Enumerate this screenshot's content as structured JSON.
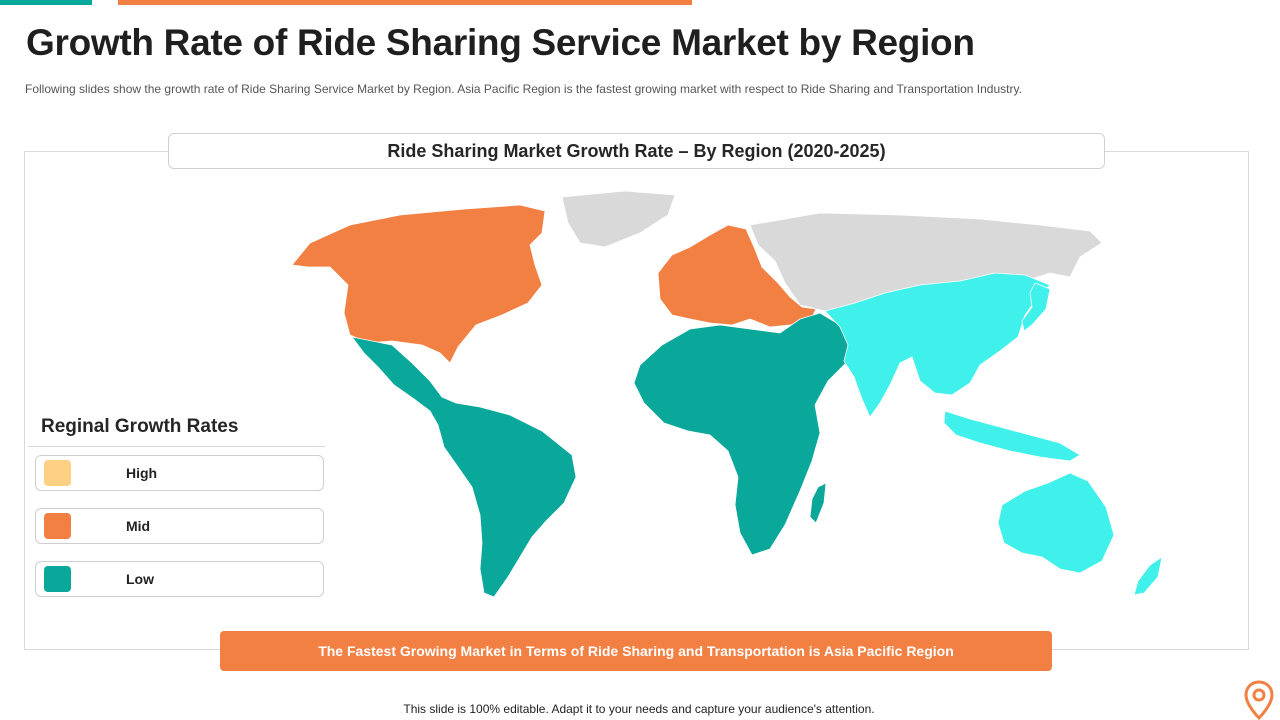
{
  "slide": {
    "title": "Growth Rate of Ride Sharing Service Market by Region",
    "description": "Following slides show the growth rate of Ride Sharing Service Market by Region. Asia Pacific Region is the fastest growing market with respect to Ride Sharing and Transportation Industry."
  },
  "map": {
    "header": "Ride Sharing Market Growth Rate – By Region (2020-2025)",
    "colors": {
      "high": "#fdd083",
      "mid": "#f28043",
      "low": "#0aa89b",
      "asia_pacific": "#3ff1ea",
      "no_data": "#d9d9d9"
    },
    "regions": [
      {
        "name": "North America",
        "category": "mid"
      },
      {
        "name": "Europe",
        "category": "mid"
      },
      {
        "name": "Latin America",
        "category": "low"
      },
      {
        "name": "Middle East & Africa",
        "category": "low"
      },
      {
        "name": "Asia Pacific",
        "category": "highlight"
      },
      {
        "name": "Russia / Northern Asia / Greenland",
        "category": "none"
      }
    ]
  },
  "legend": {
    "title": "Reginal Growth Rates",
    "items": [
      {
        "label": "High",
        "color": "#fdd083"
      },
      {
        "label": "Mid",
        "color": "#f28043"
      },
      {
        "label": "Low",
        "color": "#0aa89b"
      }
    ]
  },
  "banner": {
    "text": "The Fastest Growing Market in Terms of Ride Sharing and Transportation is Asia Pacific Region"
  },
  "footer": {
    "text": "This slide is 100% editable. Adapt it to your needs and capture your audience's attention."
  },
  "icons": {
    "pin": "map-pin-icon"
  }
}
